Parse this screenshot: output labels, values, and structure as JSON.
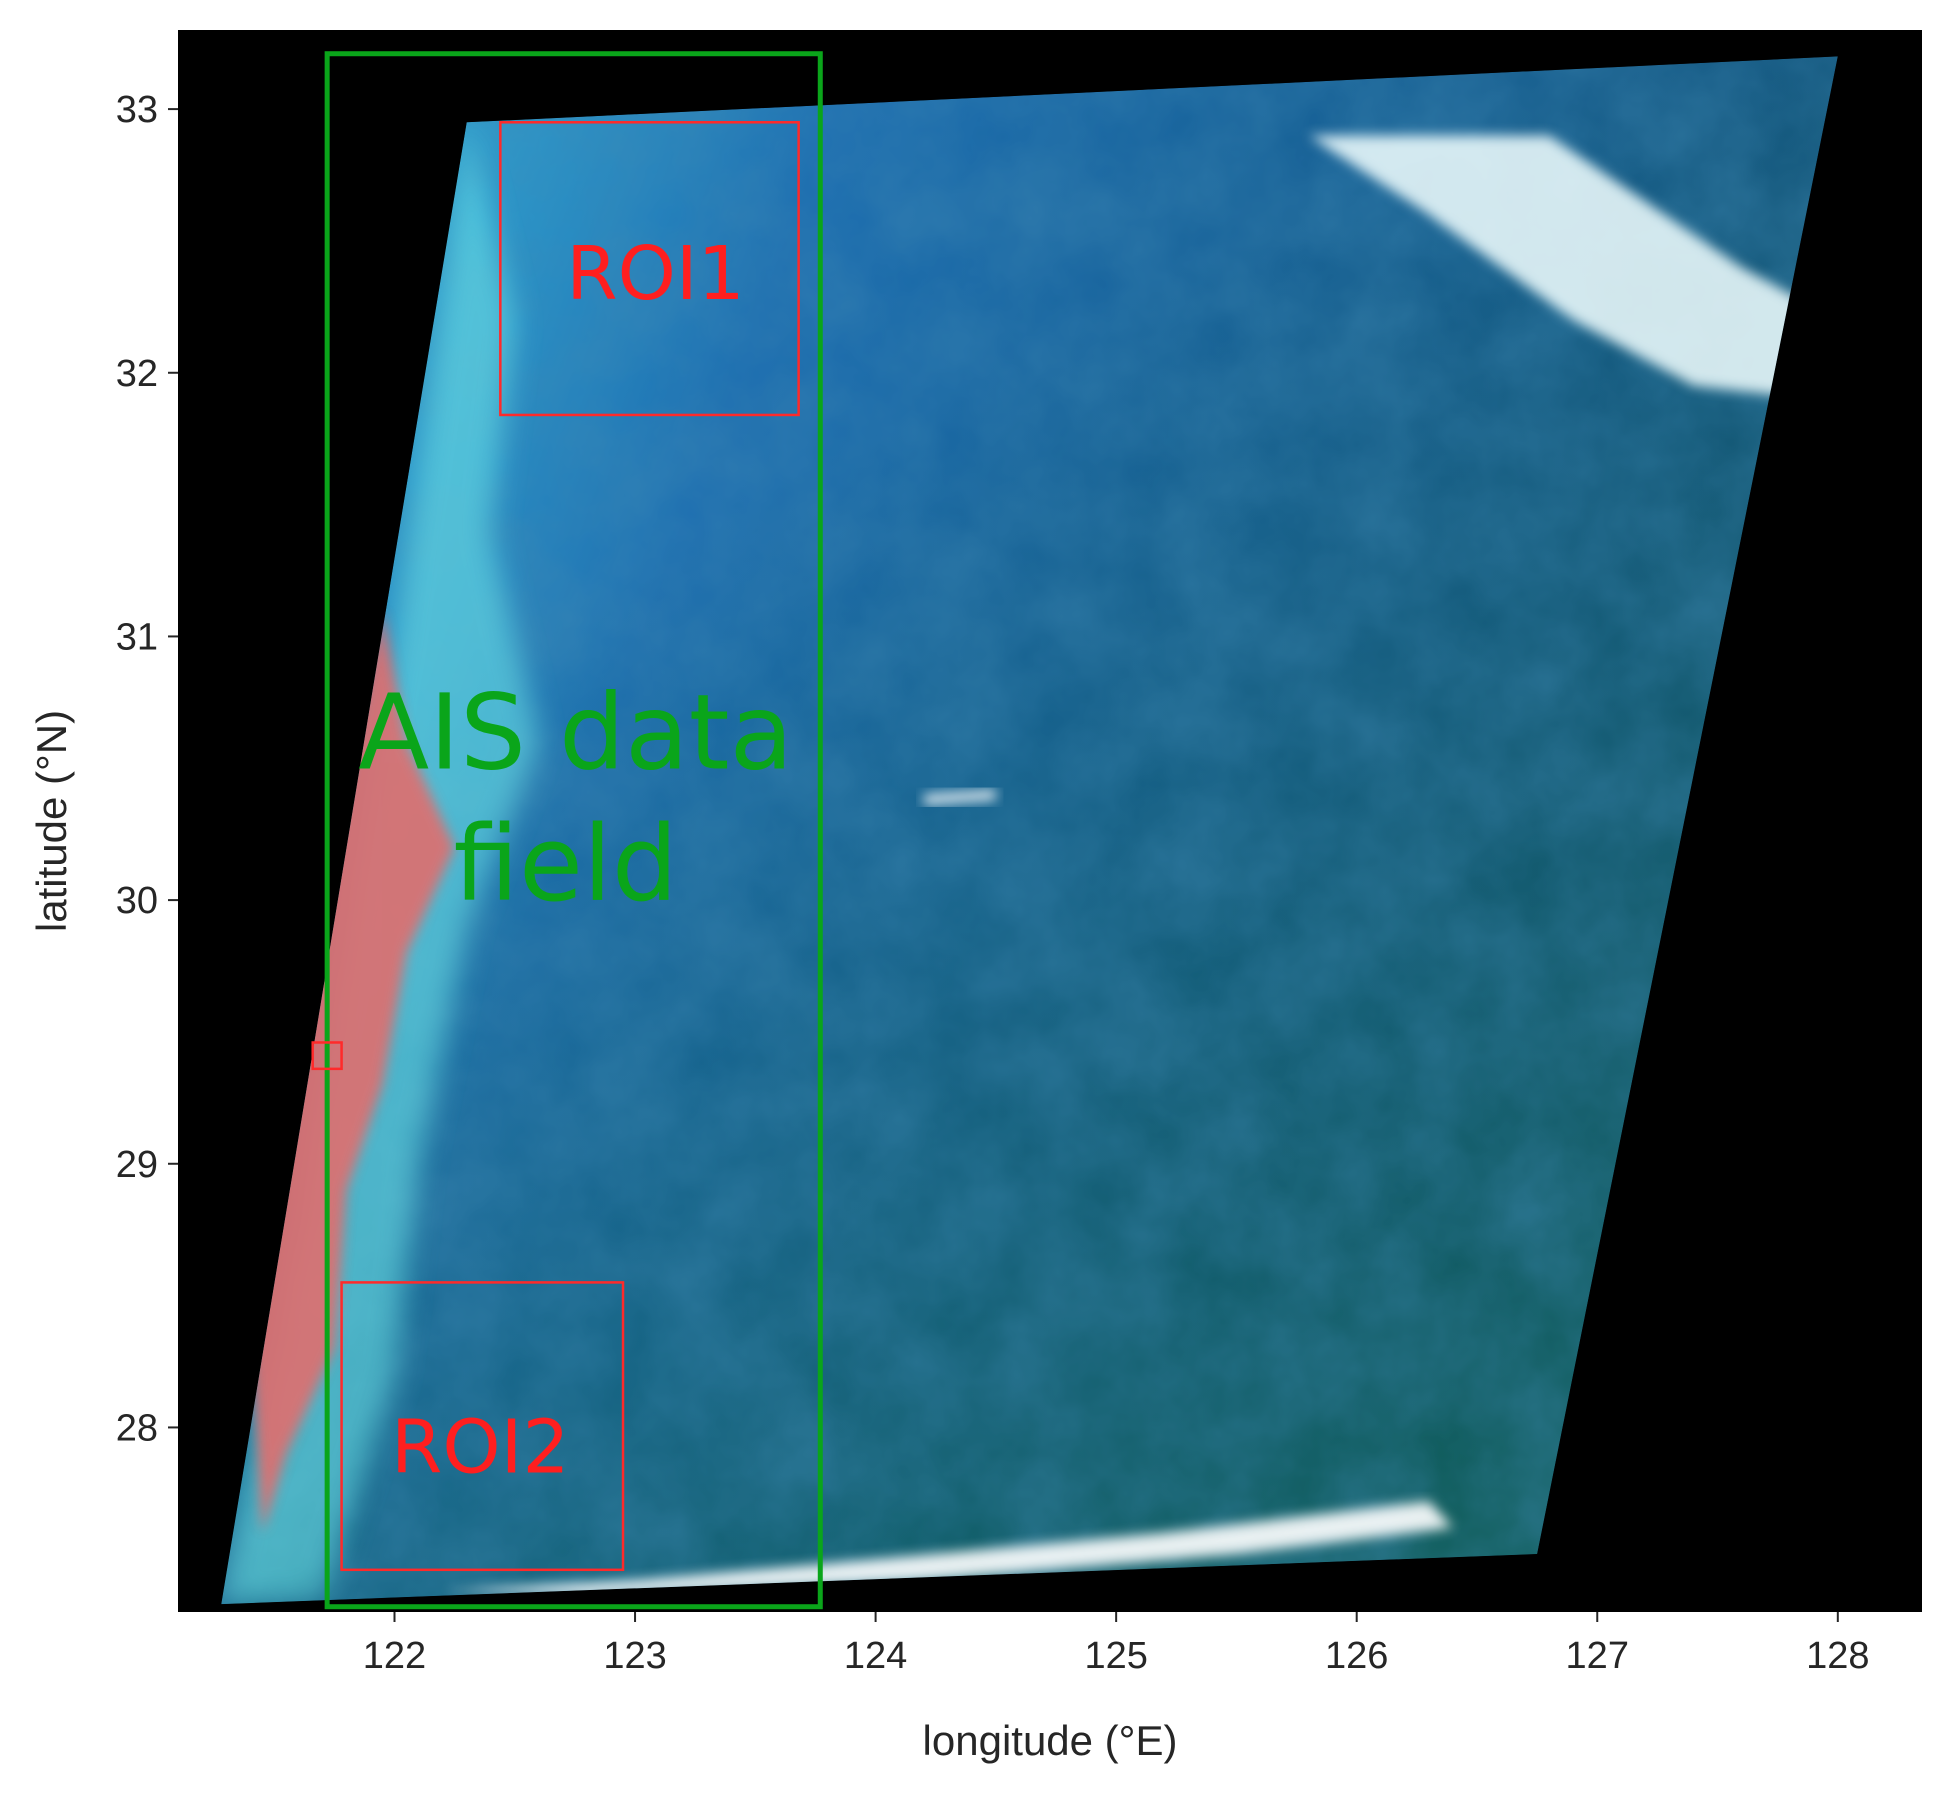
{
  "map": {
    "x_axis": {
      "label": "longitude (°E)",
      "range": [
        121.1,
        128.35
      ],
      "ticks": [
        122,
        123,
        124,
        125,
        126,
        127,
        128
      ],
      "tick_labels": [
        "122",
        "123",
        "124",
        "125",
        "126",
        "127",
        "128"
      ]
    },
    "y_axis": {
      "label": "latitude (°N)",
      "range": [
        27.3,
        33.3
      ],
      "ticks": [
        28,
        29,
        30,
        31,
        32,
        33
      ],
      "tick_labels": [
        "28",
        "29",
        "30",
        "31",
        "32",
        "33"
      ]
    },
    "scene_corners_lonlat": [
      [
        122.3,
        32.95
      ],
      [
        128.0,
        33.2
      ],
      [
        126.75,
        27.52
      ],
      [
        121.28,
        27.33
      ]
    ],
    "regions": {
      "ais_field": {
        "label_line1": "AIS data",
        "label_line2": "field",
        "lon": [
          121.72,
          123.77
        ],
        "lat": [
          27.32,
          33.21
        ],
        "color": "#0aa51a"
      },
      "roi1": {
        "label": "ROI1",
        "lon": [
          122.44,
          123.68
        ],
        "lat": [
          31.84,
          32.95
        ],
        "color": "#ff2a2a"
      },
      "roi2": {
        "label": "ROI2",
        "lon": [
          121.78,
          122.95
        ],
        "lat": [
          27.46,
          28.55
        ],
        "color": "#ff2a2a"
      },
      "small_marker": {
        "lon": [
          121.66,
          121.78
        ],
        "lat": [
          29.36,
          29.46
        ],
        "color": "#ff2a2a"
      }
    },
    "colors": {
      "frame_background": "#000000",
      "water_deep": "#0e4f8a",
      "water_coastal": "#3dc8e0",
      "water_southeast": "#0f5f52",
      "land": "#e06e6e",
      "cloud": "#ffffff"
    }
  }
}
